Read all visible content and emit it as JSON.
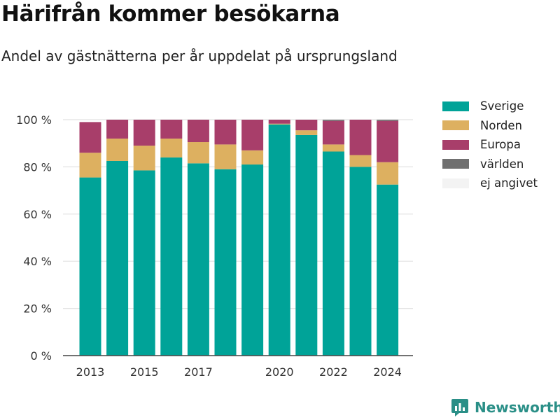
{
  "title": "Härifrån kommer besökarna",
  "subtitle": "Andel av gästnätterna per år uppdelat på ursprungsland",
  "brand": {
    "name": "Newsworthy",
    "color": "#2a8f87"
  },
  "chart_data": {
    "type": "bar",
    "stacked": true,
    "categories": [
      "2013",
      "2014",
      "2015",
      "2016",
      "2017",
      "2018",
      "2019",
      "2020",
      "2021",
      "2022",
      "2023",
      "2024"
    ],
    "x_tick_labels": [
      "2013",
      "",
      "2015",
      "",
      "2017",
      "",
      "",
      "2020",
      "",
      "2022",
      "",
      "2024"
    ],
    "ylim": [
      0,
      100
    ],
    "y_ticks": [
      0,
      20,
      40,
      60,
      80,
      100
    ],
    "y_tick_labels": [
      "0 %",
      "20 %",
      "40 %",
      "60 %",
      "80 %",
      "100 %"
    ],
    "grid": true,
    "legend_position": "right",
    "series": [
      {
        "name": "Sverige",
        "color": "#00a398",
        "values": [
          75.5,
          82.5,
          78.5,
          84,
          81.5,
          79,
          81,
          98,
          93.5,
          86.5,
          80,
          72.5
        ]
      },
      {
        "name": "Norden",
        "color": "#ddb060",
        "values": [
          10.5,
          9.5,
          10.5,
          8,
          9,
          10.5,
          6,
          0.3,
          2,
          3,
          5,
          9.5
        ]
      },
      {
        "name": "Europa",
        "color": "#a83e6a",
        "values": [
          13,
          8,
          11,
          8,
          9.5,
          10.5,
          13,
          1.7,
          4.5,
          10,
          15,
          17.5
        ]
      },
      {
        "name": "världen",
        "color": "#707070",
        "values": [
          0,
          0,
          0,
          0,
          0,
          0,
          0,
          0,
          0,
          0.5,
          0,
          0.5
        ]
      },
      {
        "name": "ej angivet",
        "color": "#f3f3f3",
        "values": [
          0,
          0,
          0,
          0,
          0,
          0,
          0,
          0,
          0,
          0,
          0,
          0
        ]
      }
    ]
  }
}
